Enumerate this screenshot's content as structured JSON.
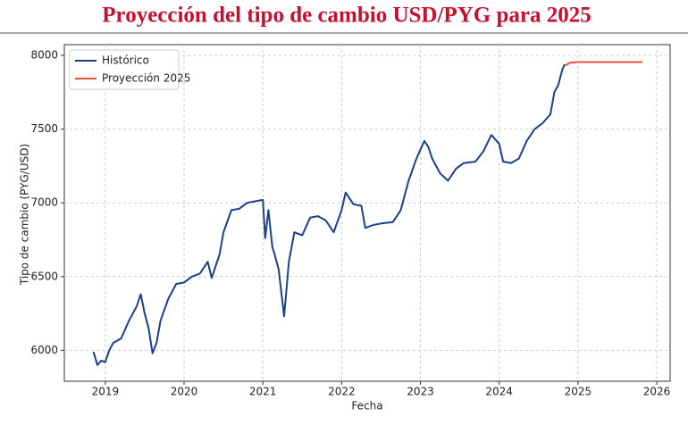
{
  "chart_data": {
    "type": "line",
    "title": "Proyección del tipo de cambio USD/PYG para 2025",
    "x_label": "Fecha",
    "y_label": "Tipo de cambio (PYG/USD)",
    "xlim": [
      2018.48,
      2026.17
    ],
    "xticks": [
      2019,
      2020,
      2021,
      2022,
      2023,
      2024,
      2025,
      2026
    ],
    "ylim": [
      5790,
      8073
    ],
    "yticks": [
      6000,
      6500,
      7000,
      7500,
      8000
    ],
    "grid": true,
    "legend": "upper left",
    "series": [
      {
        "name": "Histórico",
        "color": "#1b3f8f",
        "x": [
          2018.85,
          2018.9,
          2018.95,
          2019.0,
          2019.05,
          2019.1,
          2019.2,
          2019.3,
          2019.4,
          2019.45,
          2019.5,
          2019.55,
          2019.6,
          2019.65,
          2019.7,
          2019.8,
          2019.9,
          2020.0,
          2020.1,
          2020.2,
          2020.3,
          2020.35,
          2020.45,
          2020.5,
          2020.6,
          2020.7,
          2020.8,
          2020.9,
          2021.0,
          2021.03,
          2021.07,
          2021.12,
          2021.15,
          2021.2,
          2021.27,
          2021.33,
          2021.4,
          2021.5,
          2021.6,
          2021.7,
          2021.8,
          2021.9,
          2022.0,
          2022.05,
          2022.15,
          2022.25,
          2022.3,
          2022.4,
          2022.5,
          2022.65,
          2022.75,
          2022.85,
          2022.95,
          2023.05,
          2023.1,
          2023.15,
          2023.25,
          2023.35,
          2023.45,
          2023.55,
          2023.7,
          2023.8,
          2023.9,
          2024.0,
          2024.05,
          2024.15,
          2024.25,
          2024.35,
          2024.45,
          2024.55,
          2024.65,
          2024.7,
          2024.75,
          2024.8,
          2024.83
        ],
        "values": [
          5990,
          5900,
          5930,
          5920,
          6000,
          6050,
          6080,
          6200,
          6300,
          6380,
          6250,
          6150,
          5980,
          6050,
          6200,
          6350,
          6450,
          6460,
          6500,
          6520,
          6600,
          6490,
          6650,
          6800,
          6950,
          6960,
          7000,
          7010,
          7020,
          6760,
          6950,
          6700,
          6650,
          6550,
          6230,
          6600,
          6800,
          6780,
          6900,
          6910,
          6880,
          6800,
          6950,
          7070,
          6990,
          6980,
          6830,
          6850,
          6860,
          6870,
          6950,
          7150,
          7300,
          7420,
          7380,
          7300,
          7200,
          7150,
          7230,
          7270,
          7280,
          7350,
          7460,
          7400,
          7280,
          7270,
          7300,
          7420,
          7500,
          7540,
          7600,
          7750,
          7800,
          7900,
          7940
        ]
      },
      {
        "name": "Proyección 2025",
        "color": "#e0533a",
        "x": [
          2024.83,
          2024.9,
          2025.0,
          2025.82
        ],
        "values": [
          7930,
          7950,
          7955,
          7955
        ]
      }
    ]
  }
}
